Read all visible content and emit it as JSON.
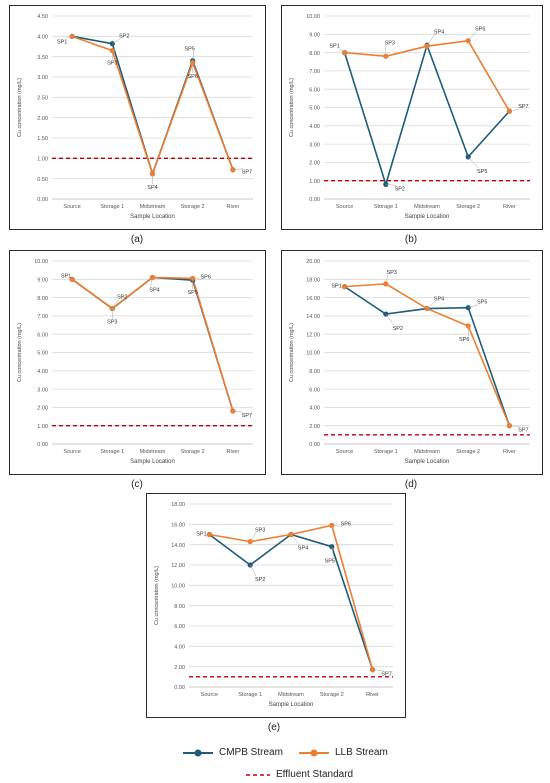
{
  "colors": {
    "cmpb": "#1f5c7a",
    "llb": "#ed7d31",
    "standard": "#c00000"
  },
  "legend": {
    "cmpb": "CMPB Stream",
    "llb": "LLB Stream",
    "standard": "Effluent Standard"
  },
  "chart_data": [
    {
      "type": "line",
      "panel_label": "(a)",
      "categories": [
        "Source",
        "Storage 1",
        "Midstream",
        "Storage 2",
        "River"
      ],
      "xlabel": "Sample Location",
      "ylabel": "Cu concentration (mg/L)",
      "ylim": [
        0,
        4.5
      ],
      "ytick_step": 0.5,
      "ytick_decimals": 2,
      "standard": 1.0,
      "series": [
        {
          "name": "CMPB Stream",
          "values": [
            4.0,
            3.82,
            0.62,
            3.4,
            0.72
          ]
        },
        {
          "name": "LLB Stream",
          "values": [
            4.0,
            3.65,
            0.62,
            3.35,
            0.72
          ]
        }
      ],
      "point_labels": [
        {
          "text": "SP1",
          "series": 0,
          "index": 0,
          "dx": -10,
          "dy": 5
        },
        {
          "text": "SP2",
          "series": 0,
          "index": 1,
          "dx": 12,
          "dy": -8
        },
        {
          "text": "SP3",
          "series": 1,
          "index": 1,
          "dx": 0,
          "dy": 12
        },
        {
          "text": "SP4",
          "series": 0,
          "index": 2,
          "dx": 0,
          "dy": 13
        },
        {
          "text": "SP5",
          "series": 0,
          "index": 3,
          "dx": -3,
          "dy": -12
        },
        {
          "text": "SP6",
          "series": 1,
          "index": 3,
          "dx": 0,
          "dy": 13
        },
        {
          "text": "SP7",
          "series": 0,
          "index": 4,
          "dx": 14,
          "dy": 2
        }
      ]
    },
    {
      "type": "line",
      "panel_label": "(b)",
      "categories": [
        "Source",
        "Storage 1",
        "Midstream",
        "Storage 2",
        "River"
      ],
      "xlabel": "Sample Location",
      "ylabel": "Cu concentration (mg/L)",
      "ylim": [
        0,
        10
      ],
      "ytick_step": 1,
      "ytick_decimals": 2,
      "standard": 1.0,
      "series": [
        {
          "name": "CMPB Stream",
          "values": [
            8.0,
            0.8,
            8.4,
            2.3,
            4.8
          ]
        },
        {
          "name": "LLB Stream",
          "values": [
            8.0,
            7.8,
            8.35,
            8.65,
            4.8
          ]
        }
      ],
      "point_labels": [
        {
          "text": "SP1",
          "series": 0,
          "index": 0,
          "dx": -10,
          "dy": -7
        },
        {
          "text": "SP2",
          "series": 0,
          "index": 1,
          "dx": 14,
          "dy": 4
        },
        {
          "text": "SP3",
          "series": 1,
          "index": 1,
          "dx": 4,
          "dy": -14
        },
        {
          "text": "SP4",
          "series": 0,
          "index": 2,
          "dx": 12,
          "dy": -14
        },
        {
          "text": "SP5",
          "series": 0,
          "index": 3,
          "dx": 14,
          "dy": 14
        },
        {
          "text": "SP6",
          "series": 1,
          "index": 3,
          "dx": 12,
          "dy": -12
        },
        {
          "text": "SP7",
          "series": 1,
          "index": 4,
          "dx": 14,
          "dy": -5
        }
      ]
    },
    {
      "type": "line",
      "panel_label": "(c)",
      "categories": [
        "Source",
        "Storage 1",
        "Midstream",
        "Storage 2",
        "River"
      ],
      "xlabel": "Sample Location",
      "ylabel": "Cu concentration (mg/L)",
      "ylim": [
        0,
        10
      ],
      "ytick_step": 1,
      "ytick_decimals": 2,
      "standard": 1.0,
      "series": [
        {
          "name": "CMPB Stream",
          "values": [
            9.0,
            7.4,
            9.1,
            8.95,
            1.8
          ]
        },
        {
          "name": "LLB Stream",
          "values": [
            9.0,
            7.4,
            9.1,
            9.05,
            1.8
          ]
        }
      ],
      "point_labels": [
        {
          "text": "SP1",
          "series": 0,
          "index": 0,
          "dx": -6,
          "dy": -4
        },
        {
          "text": "SP2",
          "series": 0,
          "index": 1,
          "dx": 10,
          "dy": -12
        },
        {
          "text": "SP3",
          "series": 0,
          "index": 1,
          "dx": 0,
          "dy": 13
        },
        {
          "text": "SP4",
          "series": 0,
          "index": 2,
          "dx": 2,
          "dy": 12
        },
        {
          "text": "SP5",
          "series": 0,
          "index": 3,
          "dx": 0,
          "dy": 12
        },
        {
          "text": "SP6",
          "series": 1,
          "index": 3,
          "dx": 13,
          "dy": -2
        },
        {
          "text": "SP7",
          "series": 1,
          "index": 4,
          "dx": 14,
          "dy": 4
        }
      ]
    },
    {
      "type": "line",
      "panel_label": "(d)",
      "categories": [
        "Source",
        "Storage 1",
        "Midstream",
        "Storage 2",
        "River"
      ],
      "xlabel": "Sample Location",
      "ylabel": "Cu concentration (mg/L)",
      "ylim": [
        0,
        20
      ],
      "ytick_step": 2,
      "ytick_decimals": 2,
      "standard": 1.0,
      "series": [
        {
          "name": "CMPB Stream",
          "values": [
            17.2,
            14.2,
            14.8,
            14.9,
            2.0
          ]
        },
        {
          "name": "LLB Stream",
          "values": [
            17.2,
            17.5,
            14.8,
            12.9,
            2.0
          ]
        }
      ],
      "point_labels": [
        {
          "text": "SP1",
          "series": 0,
          "index": 0,
          "dx": -8,
          "dy": -1
        },
        {
          "text": "SP2",
          "series": 0,
          "index": 1,
          "dx": 12,
          "dy": 14
        },
        {
          "text": "SP3",
          "series": 1,
          "index": 1,
          "dx": 6,
          "dy": -12
        },
        {
          "text": "SP4",
          "series": 0,
          "index": 2,
          "dx": 12,
          "dy": -10
        },
        {
          "text": "SP5",
          "series": 0,
          "index": 3,
          "dx": 14,
          "dy": -6
        },
        {
          "text": "SP6",
          "series": 1,
          "index": 3,
          "dx": -4,
          "dy": 13
        },
        {
          "text": "SP7",
          "series": 1,
          "index": 4,
          "dx": 14,
          "dy": 4
        }
      ]
    },
    {
      "type": "line",
      "panel_label": "(e)",
      "categories": [
        "Source",
        "Storage 1",
        "Midstream",
        "Storage 2",
        "River"
      ],
      "xlabel": "Sample Location",
      "ylabel": "Cu concentration (mg/L)",
      "ylim": [
        0,
        18
      ],
      "ytick_step": 2,
      "ytick_decimals": 2,
      "standard": 1.0,
      "series": [
        {
          "name": "CMPB Stream",
          "values": [
            15.0,
            12.0,
            15.0,
            13.8,
            1.7
          ]
        },
        {
          "name": "LLB Stream",
          "values": [
            15.0,
            14.3,
            15.0,
            15.9,
            1.7
          ]
        }
      ],
      "point_labels": [
        {
          "text": "SP1",
          "series": 0,
          "index": 0,
          "dx": -8,
          "dy": -1
        },
        {
          "text": "SP2",
          "series": 0,
          "index": 1,
          "dx": 10,
          "dy": 14
        },
        {
          "text": "SP3",
          "series": 1,
          "index": 1,
          "dx": 10,
          "dy": -12
        },
        {
          "text": "SP4",
          "series": 0,
          "index": 2,
          "dx": 12,
          "dy": 13
        },
        {
          "text": "SP5",
          "series": 0,
          "index": 3,
          "dx": -2,
          "dy": 14
        },
        {
          "text": "SP6",
          "series": 1,
          "index": 3,
          "dx": 14,
          "dy": -2
        },
        {
          "text": "SP7",
          "series": 1,
          "index": 4,
          "dx": 14,
          "dy": 4
        }
      ]
    }
  ]
}
